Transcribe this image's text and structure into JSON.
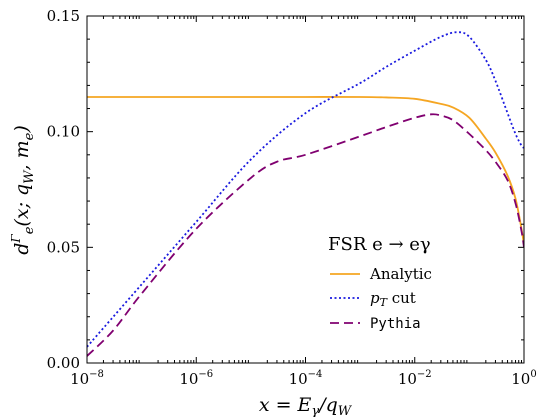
{
  "chart_data": {
    "type": "line",
    "title": "",
    "xlabel": "x = Eγ/qW",
    "ylabel": "dΓe(x; qW, me)",
    "x_scale": "log",
    "xlim": [
      1e-08,
      1
    ],
    "ylim": [
      0.0,
      0.15
    ],
    "x_ticks": [
      {
        "value": 1e-08,
        "base": "10",
        "exp": "−8"
      },
      {
        "value": 1e-06,
        "base": "10",
        "exp": "−6"
      },
      {
        "value": 0.0001,
        "base": "10",
        "exp": "−4"
      },
      {
        "value": 0.01,
        "base": "10",
        "exp": "−2"
      },
      {
        "value": 1,
        "base": "10",
        "exp": "0"
      }
    ],
    "y_ticks": [
      {
        "value": 0.0,
        "label": "0.00"
      },
      {
        "value": 0.05,
        "label": "0.05"
      },
      {
        "value": 0.1,
        "label": "0.10"
      },
      {
        "value": 0.15,
        "label": "0.15"
      }
    ],
    "grid": false,
    "legend": {
      "placement": "lower-right",
      "title": "FSR e → eγ"
    },
    "series": [
      {
        "name": "Analytic",
        "color": "#f5a623",
        "style": "solid",
        "x": [
          1e-08,
          1e-07,
          1e-06,
          1e-05,
          0.0001,
          0.001,
          0.003,
          0.01,
          0.03,
          0.05,
          0.1,
          0.2,
          0.3,
          0.5,
          0.7,
          0.9,
          1.0
        ],
        "y": [
          0.115,
          0.115,
          0.115,
          0.115,
          0.115,
          0.115,
          0.1148,
          0.1142,
          0.112,
          0.1105,
          0.106,
          0.097,
          0.091,
          0.081,
          0.071,
          0.058,
          0.051
        ]
      },
      {
        "name": "p_T cut",
        "color": "#1a1adf",
        "style": "dotted",
        "x": [
          1e-08,
          1e-07,
          1e-06,
          1e-05,
          0.0001,
          0.001,
          0.003,
          0.01,
          0.03,
          0.06,
          0.1,
          0.2,
          0.3,
          0.5,
          0.7,
          0.9,
          1.0
        ],
        "y": [
          0.007,
          0.034,
          0.061,
          0.088,
          0.108,
          0.121,
          0.128,
          0.135,
          0.141,
          0.143,
          0.141,
          0.131,
          0.122,
          0.108,
          0.099,
          0.094,
          0.093
        ]
      },
      {
        "name": "Pythia",
        "color": "#800070",
        "style": "dashed",
        "x": [
          1e-08,
          3e-08,
          1e-07,
          1e-06,
          1e-05,
          3e-05,
          0.0001,
          0.001,
          0.003,
          0.01,
          0.02,
          0.03,
          0.05,
          0.1,
          0.2,
          0.3,
          0.5,
          0.7,
          0.9,
          1.0
        ],
        "y": [
          0.003,
          0.014,
          0.03,
          0.058,
          0.08,
          0.087,
          0.09,
          0.098,
          0.102,
          0.106,
          0.1075,
          0.107,
          0.105,
          0.099,
          0.092,
          0.087,
          0.079,
          0.069,
          0.057,
          0.05
        ]
      }
    ]
  }
}
